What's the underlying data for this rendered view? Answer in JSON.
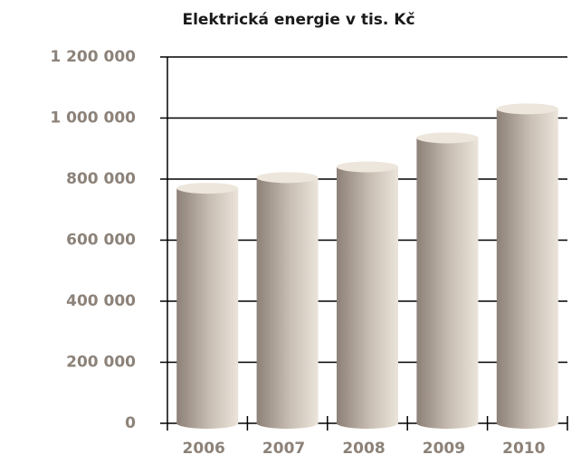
{
  "chart_data": {
    "type": "bar",
    "title": "Elektrická energie v tis. Kč",
    "categories": [
      "2006",
      "2007",
      "2008",
      "2009",
      "2010"
    ],
    "values": [
      770000,
      805000,
      840000,
      935000,
      1030000
    ],
    "color": "#b2a79c",
    "ylim": [
      0,
      1200000
    ],
    "yticks": [
      0,
      {
        "value": 200000,
        "label": "200 000"
      },
      {
        "value": 400000,
        "label": "400 000"
      },
      {
        "value": 600000,
        "label": "600 000"
      },
      {
        "value": 800000,
        "label": "800 000"
      },
      {
        "value": 1000000,
        "label": "1 000 000"
      },
      {
        "value": 1200000,
        "label": "1 200 000"
      }
    ],
    "grid": true
  }
}
